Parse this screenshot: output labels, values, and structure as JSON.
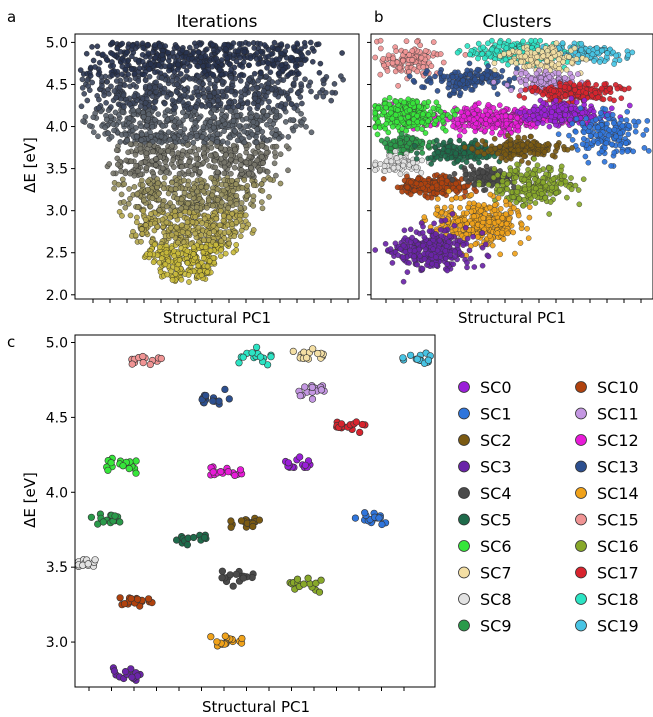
{
  "panels": [
    {
      "letter": "a",
      "title": "Iterations",
      "xlabel": "Structural PC1",
      "ylabel": "ΔE [eV]"
    },
    {
      "letter": "b",
      "title": "Clusters",
      "xlabel": "Structural PC1",
      "ylabel": ""
    },
    {
      "letter": "c",
      "title": "",
      "xlabel": "Structural PC1",
      "ylabel": "ΔE [eV]"
    }
  ],
  "chart_data": [
    {
      "type": "scatter",
      "title": "Iterations",
      "xlabel": "Structural PC1",
      "ylabel": "ΔE [eV]",
      "ylim": [
        1.95,
        5.1
      ],
      "y_ticks": [
        "2.0",
        "2.5",
        "3.0",
        "3.5",
        "4.0",
        "4.5",
        "5.0"
      ],
      "x_ticks_labeled": false,
      "grid": false,
      "color_encoding": "iteration (dark navy at high ΔE to olive-yellow at low ΔE)",
      "colors": [
        "#27324f",
        "#3c465c",
        "#59606a",
        "#77766a",
        "#958e5c",
        "#b3a54d",
        "#c9ba3a"
      ]
    },
    {
      "type": "scatter",
      "title": "Clusters",
      "xlabel": "Structural PC1",
      "ylabel": "",
      "ylim": [
        1.95,
        5.1
      ],
      "x_ticks_labeled": false,
      "y_ticks_labeled": false,
      "grid": false,
      "color_encoding": "cluster SC0–SC19"
    },
    {
      "type": "scatter",
      "title": "",
      "xlabel": "Structural PC1",
      "ylabel": "ΔE [eV]",
      "ylim": [
        2.7,
        5.05
      ],
      "y_ticks": [
        "3.0",
        "3.5",
        "4.0",
        "4.5",
        "5.0"
      ],
      "x_ticks_labeled": false,
      "grid": false,
      "legend": "right, two columns",
      "series": [
        {
          "name": "SC0",
          "color": "#9a1fd8",
          "x": 0.62,
          "y": 4.2
        },
        {
          "name": "SC1",
          "color": "#2f75dc",
          "x": 0.82,
          "y": 3.83
        },
        {
          "name": "SC2",
          "color": "#7b5a12",
          "x": 0.47,
          "y": 3.79
        },
        {
          "name": "SC3",
          "color": "#6a24a8",
          "x": 0.14,
          "y": 2.79
        },
        {
          "name": "SC4",
          "color": "#4a4a4a",
          "x": 0.45,
          "y": 3.43
        },
        {
          "name": "SC5",
          "color": "#1e6a4a",
          "x": 0.32,
          "y": 3.71
        },
        {
          "name": "SC6",
          "color": "#36e63a",
          "x": 0.13,
          "y": 4.18
        },
        {
          "name": "SC7",
          "color": "#f4dfa4",
          "x": 0.65,
          "y": 4.92
        },
        {
          "name": "SC8",
          "color": "#e2e2e2",
          "x": 0.02,
          "y": 3.52
        },
        {
          "name": "SC9",
          "color": "#2a9a4a",
          "x": 0.09,
          "y": 3.82
        },
        {
          "name": "SC10",
          "color": "#b0420e",
          "x": 0.17,
          "y": 3.27
        },
        {
          "name": "SC11",
          "color": "#c497e2",
          "x": 0.65,
          "y": 4.69
        },
        {
          "name": "SC12",
          "color": "#e81bd8",
          "x": 0.42,
          "y": 4.13
        },
        {
          "name": "SC13",
          "color": "#2c4f8f",
          "x": 0.39,
          "y": 4.62
        },
        {
          "name": "SC14",
          "color": "#f0a21a",
          "x": 0.42,
          "y": 3.0
        },
        {
          "name": "SC15",
          "color": "#f09494",
          "x": 0.2,
          "y": 4.89
        },
        {
          "name": "SC16",
          "color": "#88a82a",
          "x": 0.64,
          "y": 3.39
        },
        {
          "name": "SC17",
          "color": "#d8242e",
          "x": 0.77,
          "y": 4.45
        },
        {
          "name": "SC18",
          "color": "#2ce4c4",
          "x": 0.5,
          "y": 4.9
        },
        {
          "name": "SC19",
          "color": "#48c4e4",
          "x": 0.95,
          "y": 4.89
        }
      ]
    }
  ]
}
